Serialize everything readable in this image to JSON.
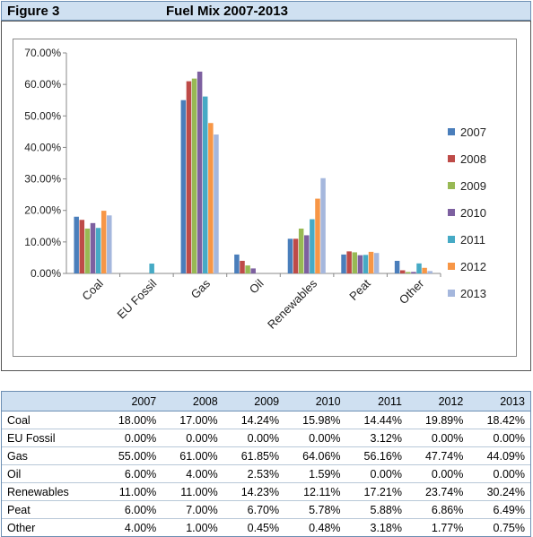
{
  "figure": {
    "label": "Figure 3",
    "title": "Fuel Mix 2007-2013"
  },
  "colors": {
    "2007": "#4a7ebb",
    "2008": "#be4b48",
    "2009": "#98b954",
    "2010": "#7d60a0",
    "2011": "#46aac5",
    "2012": "#f79646",
    "2013": "#a5b7dd"
  },
  "chart_data": {
    "type": "bar",
    "categories": [
      "Coal",
      "EU Fossil",
      "Gas",
      "Oil",
      "Renewables",
      "Peat",
      "Other"
    ],
    "series": [
      {
        "name": "2007",
        "values": [
          18.0,
          0.0,
          55.0,
          6.0,
          11.0,
          6.0,
          4.0
        ]
      },
      {
        "name": "2008",
        "values": [
          17.0,
          0.0,
          61.0,
          4.0,
          11.0,
          7.0,
          1.0
        ]
      },
      {
        "name": "2009",
        "values": [
          14.24,
          0.0,
          61.85,
          2.53,
          14.23,
          6.7,
          0.45
        ]
      },
      {
        "name": "2010",
        "values": [
          15.98,
          0.0,
          64.06,
          1.59,
          12.11,
          5.78,
          0.48
        ]
      },
      {
        "name": "2011",
        "values": [
          14.44,
          3.12,
          56.16,
          0.0,
          17.21,
          5.88,
          3.18
        ]
      },
      {
        "name": "2012",
        "values": [
          19.89,
          0.0,
          47.74,
          0.0,
          23.74,
          6.86,
          1.77
        ]
      },
      {
        "name": "2013",
        "values": [
          18.42,
          0.0,
          44.09,
          0.0,
          30.24,
          6.49,
          0.75
        ]
      }
    ],
    "yticks": [
      "0.00%",
      "10.00%",
      "20.00%",
      "30.00%",
      "40.00%",
      "50.00%",
      "60.00%",
      "70.00%"
    ],
    "ylim": [
      0,
      70
    ],
    "legend": "right"
  },
  "table": {
    "columns": [
      "",
      "2007",
      "2008",
      "2009",
      "2010",
      "2011",
      "2012",
      "2013"
    ],
    "rows": [
      {
        "label": "Coal",
        "cells": [
          "18.00%",
          "17.00%",
          "14.24%",
          "15.98%",
          "14.44%",
          "19.89%",
          "18.42%"
        ]
      },
      {
        "label": "EU Fossil",
        "cells": [
          "0.00%",
          "0.00%",
          "0.00%",
          "0.00%",
          "3.12%",
          "0.00%",
          "0.00%"
        ]
      },
      {
        "label": "Gas",
        "cells": [
          "55.00%",
          "61.00%",
          "61.85%",
          "64.06%",
          "56.16%",
          "47.74%",
          "44.09%"
        ]
      },
      {
        "label": "Oil",
        "cells": [
          "6.00%",
          "4.00%",
          "2.53%",
          "1.59%",
          "0.00%",
          "0.00%",
          "0.00%"
        ]
      },
      {
        "label": "Renewables",
        "cells": [
          "11.00%",
          "11.00%",
          "14.23%",
          "12.11%",
          "17.21%",
          "23.74%",
          "30.24%"
        ]
      },
      {
        "label": "Peat",
        "cells": [
          "6.00%",
          "7.00%",
          "6.70%",
          "5.78%",
          "5.88%",
          "6.86%",
          "6.49%"
        ]
      },
      {
        "label": "Other",
        "cells": [
          "4.00%",
          "1.00%",
          "0.45%",
          "0.48%",
          "3.18%",
          "1.77%",
          "0.75%"
        ]
      }
    ]
  }
}
